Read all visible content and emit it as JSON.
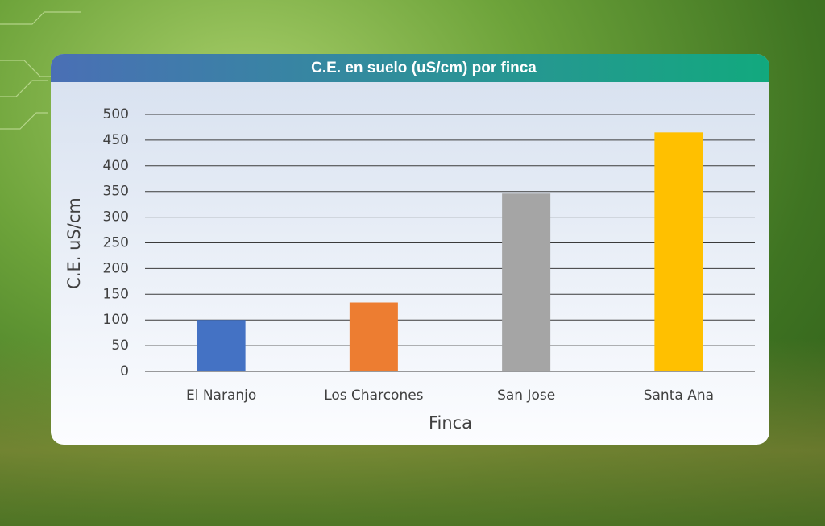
{
  "chart_data": {
    "type": "bar",
    "title": "C.E. en suelo (uS/cm) por finca",
    "x_label": "Finca",
    "y_label": "C.E. uS/cm",
    "categories": [
      "El Naranjo",
      "Los Charcones",
      "San Jose",
      "Santa Ana"
    ],
    "values": [
      100,
      134,
      346,
      465
    ],
    "colors": [
      "#4472c4",
      "#ed7d31",
      "#a5a5a5",
      "#ffc000"
    ],
    "ylim": [
      0,
      500
    ],
    "yticks": [
      0,
      50,
      100,
      150,
      200,
      250,
      300,
      350,
      400,
      450,
      500
    ],
    "grid": true
  }
}
